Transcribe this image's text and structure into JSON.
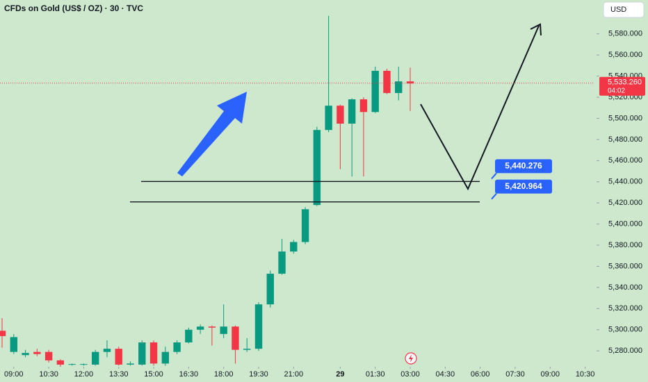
{
  "chart_data": {
    "type": "candlestick",
    "title": "CFDs on Gold (US$ / OZ) · 30 · TVC",
    "currency": "USD",
    "up_color": "#089981",
    "down_color": "#f23645",
    "grid": false,
    "xlim": [
      -0.18,
      50.8
    ],
    "xticks": [
      {
        "value": 1,
        "label": "09:00"
      },
      {
        "value": 4,
        "label": "10:30"
      },
      {
        "value": 7,
        "label": "12:00"
      },
      {
        "value": 10,
        "label": "13:30"
      },
      {
        "value": 13,
        "label": "15:00"
      },
      {
        "value": 16,
        "label": "16:30"
      },
      {
        "value": 19,
        "label": "18:00"
      },
      {
        "value": 22,
        "label": "19:30"
      },
      {
        "value": 25,
        "label": "21:00"
      },
      {
        "value": 29,
        "label": "29"
      },
      {
        "value": 32,
        "label": "01:30"
      },
      {
        "value": 35,
        "label": "03:00"
      },
      {
        "value": 38,
        "label": "04:30"
      },
      {
        "value": 41,
        "label": "06:00"
      },
      {
        "value": 44,
        "label": "07:30"
      },
      {
        "value": 47,
        "label": "09:00"
      },
      {
        "value": 50,
        "label": "10:30"
      }
    ],
    "ylim": [
      5265,
      5612
    ],
    "yticks": [
      {
        "value": 5280,
        "label": "5,280.000"
      },
      {
        "value": 5300,
        "label": "5,300.000"
      },
      {
        "value": 5320,
        "label": "5,320.000"
      },
      {
        "value": 5340,
        "label": "5,340.000"
      },
      {
        "value": 5360,
        "label": "5,360.000"
      },
      {
        "value": 5380,
        "label": "5,380.000"
      },
      {
        "value": 5400,
        "label": "5,400.000"
      },
      {
        "value": 5420,
        "label": "5,420.000"
      },
      {
        "value": 5440,
        "label": "5,440.000"
      },
      {
        "value": 5460,
        "label": "5,460.000"
      },
      {
        "value": 5480,
        "label": "5,480.000"
      },
      {
        "value": 5500,
        "label": "5,500.000"
      },
      {
        "value": 5520,
        "label": "5,520.000"
      },
      {
        "value": 5540,
        "label": "5,540.000"
      },
      {
        "value": 5560,
        "label": "5,560.000"
      },
      {
        "value": 5580,
        "label": "5,580.000"
      }
    ],
    "open": [
      5299,
      5279,
      5276,
      5279,
      5279,
      5271,
      5267,
      5267,
      5267,
      5279,
      5282,
      5267,
      5267,
      5288,
      5268,
      5279,
      5288,
      5300,
      5303,
      5296,
      5303,
      5281,
      5282,
      5324,
      5353,
      5374,
      5383,
      5418,
      5489,
      5512,
      5495,
      5518,
      5506,
      5545,
      5524,
      5535
    ],
    "high": [
      5311,
      5296,
      5281,
      5282,
      5281,
      5272,
      5268,
      5268,
      5281,
      5290,
      5284,
      5270,
      5290,
      5290,
      5284,
      5290,
      5302,
      5305,
      5304,
      5324,
      5304,
      5292,
      5326,
      5356,
      5386,
      5385,
      5416,
      5492,
      5597,
      5513,
      5519,
      5520,
      5549,
      5547,
      5549,
      5548
    ],
    "low": [
      5283,
      5277,
      5274,
      5275,
      5269,
      5265,
      5266,
      5266,
      5266,
      5274,
      5266,
      5266,
      5266,
      5266,
      5266,
      5277,
      5287,
      5296,
      5285,
      5292,
      5268,
      5279,
      5280,
      5321,
      5352,
      5372,
      5381,
      5417,
      5487,
      5452,
      5445,
      5445,
      5505,
      5523,
      5517,
      5507
    ],
    "close": [
      5294,
      5293,
      5278,
      5277,
      5271,
      5267,
      5267.5,
      5267.5,
      5279,
      5282,
      5267,
      5268,
      5288,
      5268,
      5279,
      5288,
      5300,
      5303,
      5302,
      5303,
      5281,
      5282,
      5324,
      5353,
      5374,
      5383,
      5414,
      5489,
      5512,
      5495,
      5518,
      5506,
      5545,
      5524,
      5535,
      5533
    ],
    "levels": [
      {
        "value": 5440.276,
        "label": "5,440.276"
      },
      {
        "value": 5420.964,
        "label": "5,420.964"
      }
    ],
    "last_price": {
      "value": 5533.26,
      "label": "5,533.260"
    },
    "countdown": "04:02"
  }
}
